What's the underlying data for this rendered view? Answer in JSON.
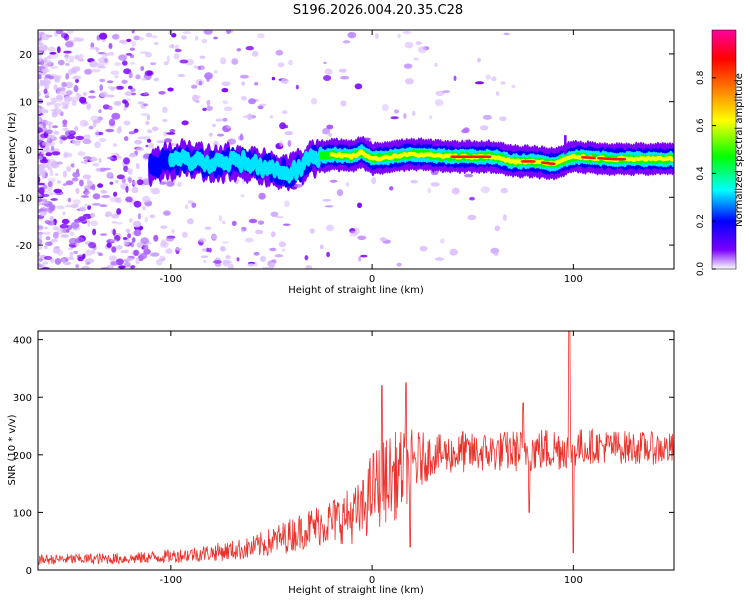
{
  "title": "S196.2026.004.20.35.C28",
  "colors": {
    "snr_line": "#e8332b",
    "background": "#ffffff",
    "axis": "#000000"
  },
  "chart_data": [
    {
      "type": "heatmap",
      "name": "spectrogram",
      "xlabel": "Height of straight line (km)",
      "ylabel": "Frequency (Hz)",
      "xlim": [
        -166,
        150
      ],
      "ylim": [
        -25,
        25
      ],
      "xticks": [
        -100,
        0,
        100
      ],
      "yticks": [
        -20,
        -10,
        0,
        10,
        20
      ],
      "xtick_labels": [
        "-100",
        "0",
        "100"
      ],
      "ytick_labels": [
        "-20",
        "-10",
        "0",
        "10",
        "20"
      ],
      "colorbar": {
        "label": "Normalized spectral amplitude",
        "range": [
          0,
          1
        ],
        "ticks": [
          0.0,
          0.2,
          0.4,
          0.6,
          0.8
        ],
        "tick_labels": [
          "0.0",
          "0.2",
          "0.4",
          "0.6",
          "0.8"
        ],
        "colormap": [
          "#ffffff",
          "#7a00ff",
          "#0000ff",
          "#00ffff",
          "#00ff00",
          "#ffff00",
          "#ff8000",
          "#ff0000",
          "#ff00a0"
        ]
      },
      "ridge": [
        {
          "x": -110,
          "f": -3.5
        },
        {
          "x": -95,
          "f": -2
        },
        {
          "x": -80,
          "f": -3
        },
        {
          "x": -65,
          "f": -2.5
        },
        {
          "x": -50,
          "f": -4
        },
        {
          "x": -40,
          "f": -5
        },
        {
          "x": -30,
          "f": -2
        },
        {
          "x": -20,
          "f": -1
        },
        {
          "x": -10,
          "f": -1.5
        },
        {
          "x": -5,
          "f": -0.5
        },
        {
          "x": 0,
          "f": -2
        },
        {
          "x": 10,
          "f": -1.5
        },
        {
          "x": 20,
          "f": -1
        },
        {
          "x": 40,
          "f": -1.5
        },
        {
          "x": 60,
          "f": -1.5
        },
        {
          "x": 70,
          "f": -2.5
        },
        {
          "x": 80,
          "f": -2.5
        },
        {
          "x": 90,
          "f": -3
        },
        {
          "x": 100,
          "f": -1.5
        },
        {
          "x": 120,
          "f": -2
        },
        {
          "x": 140,
          "f": -2
        },
        {
          "x": 150,
          "f": -2
        }
      ],
      "spike": {
        "x": 96,
        "f_range": [
          -1,
          3
        ]
      }
    },
    {
      "type": "line",
      "name": "snr",
      "xlabel": "Height of straight line (km)",
      "ylabel": "SNR (10 * v/v)",
      "xlim": [
        -166,
        150
      ],
      "ylim": [
        0,
        415
      ],
      "xticks": [
        -100,
        0,
        100
      ],
      "yticks": [
        0,
        100,
        200,
        300,
        400
      ],
      "xtick_labels": [
        "-100",
        "0",
        "100"
      ],
      "ytick_labels": [
        "0",
        "100",
        "200",
        "300",
        "400"
      ],
      "envelope": [
        {
          "x": -166,
          "mean": 18,
          "amp": 9
        },
        {
          "x": -120,
          "mean": 20,
          "amp": 10
        },
        {
          "x": -100,
          "mean": 24,
          "amp": 12
        },
        {
          "x": -80,
          "mean": 30,
          "amp": 15
        },
        {
          "x": -60,
          "mean": 38,
          "amp": 20
        },
        {
          "x": -45,
          "mean": 55,
          "amp": 28
        },
        {
          "x": -30,
          "mean": 75,
          "amp": 35
        },
        {
          "x": -15,
          "mean": 90,
          "amp": 45
        },
        {
          "x": -5,
          "mean": 100,
          "amp": 55
        },
        {
          "x": 0,
          "mean": 140,
          "amp": 70
        },
        {
          "x": 10,
          "mean": 160,
          "amp": 80
        },
        {
          "x": 20,
          "mean": 185,
          "amp": 60
        },
        {
          "x": 30,
          "mean": 200,
          "amp": 35
        },
        {
          "x": 60,
          "mean": 205,
          "amp": 35
        },
        {
          "x": 90,
          "mean": 210,
          "amp": 40
        },
        {
          "x": 110,
          "mean": 215,
          "amp": 30
        },
        {
          "x": 150,
          "mean": 210,
          "amp": 28
        }
      ],
      "peaks": [
        {
          "x": 5,
          "y": 320
        },
        {
          "x": 8,
          "y": 130
        },
        {
          "x": 17,
          "y": 325
        },
        {
          "x": 19,
          "y": 40
        },
        {
          "x": 45,
          "y": 240
        },
        {
          "x": 75,
          "y": 290
        },
        {
          "x": 98,
          "y": 415
        },
        {
          "x": 100,
          "y": 30
        },
        {
          "x": 78,
          "y": 100
        }
      ]
    }
  ]
}
